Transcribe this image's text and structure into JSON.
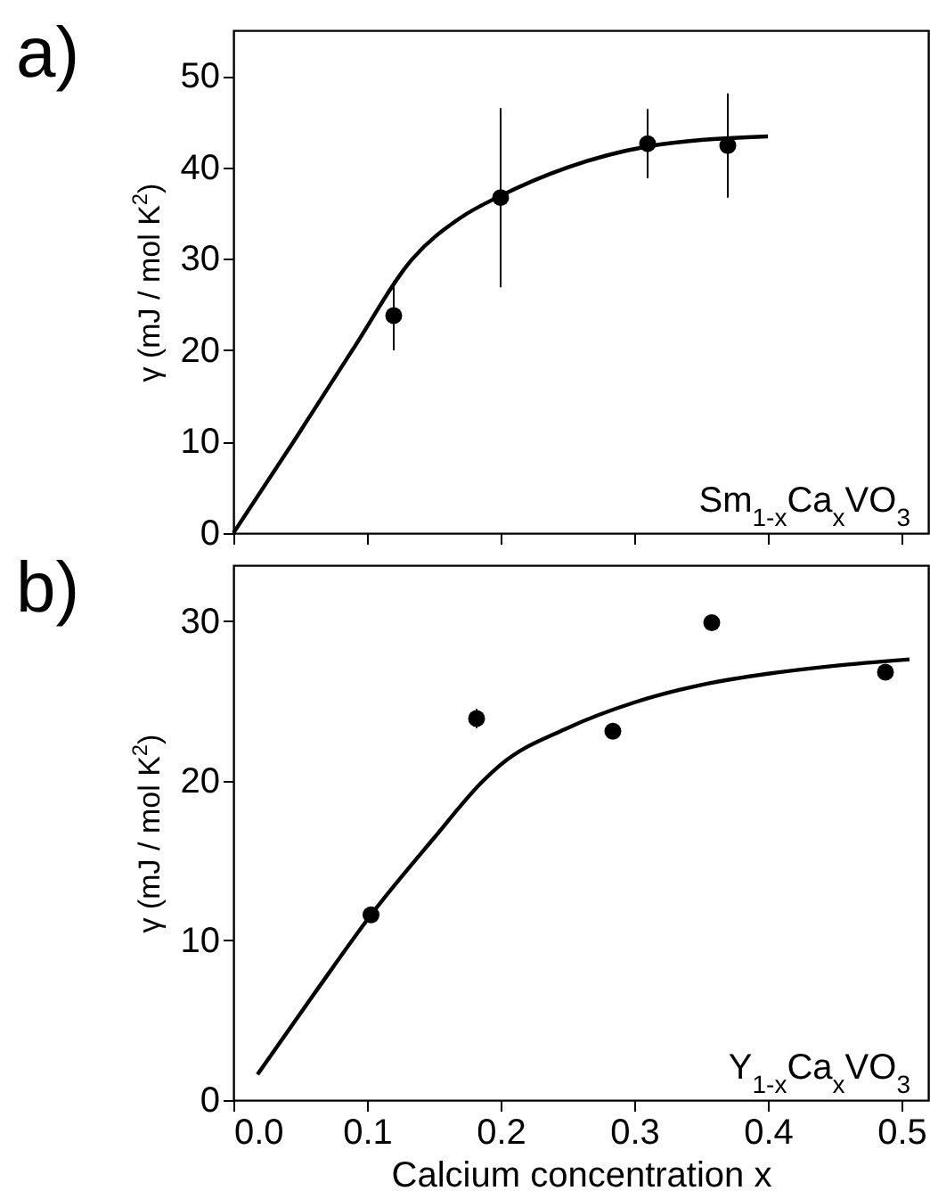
{
  "chart_data": [
    {
      "type": "scatter",
      "title": "a)",
      "ylabel": "γ (mJ / mol K$^{2}$)",
      "annotations": [
        "Sm$_{1-x}$Ca$_{x}$VO$_{3}$"
      ],
      "xlim": [
        0,
        0.52
      ],
      "xticks": [
        0,
        0.1,
        0.2,
        0.3,
        0.4,
        0.5
      ],
      "ylim": [
        0,
        55
      ],
      "yticks": [
        0,
        10,
        20,
        30,
        40,
        50
      ],
      "tick_labels": "y",
      "series": [
        {
          "marker": "circle",
          "color": "#000000",
          "x": [
            0.12,
            0.2,
            0.31,
            0.37
          ],
          "values": [
            23.8,
            36.7,
            42.6,
            42.4
          ],
          "errors": [
            3.8,
            9.8,
            3.8,
            5.7
          ]
        },
        {
          "type": "line",
          "color": "#000000",
          "x": [
            0,
            0.045,
            0.089,
            0.134,
            0.17,
            0.2,
            0.25,
            0.31,
            0.35,
            0.4
          ],
          "values": [
            0,
            10,
            20,
            30,
            34.5,
            36.9,
            40,
            42.3,
            43.0,
            43.4
          ]
        }
      ]
    },
    {
      "type": "scatter",
      "title": "b)",
      "xlabel": "Calcium concentration x",
      "ylabel": "γ (mJ / mol K$^{2}$)",
      "annotations": [
        "Y$_{1-x}$Ca$_{x}$VO$_{3}$"
      ],
      "xlim": [
        0,
        0.52
      ],
      "xticks": [
        {
          "value": 0,
          "label": "0.0"
        },
        0.1,
        0.2,
        0.3,
        0.4,
        0.5
      ],
      "ylim": [
        0,
        33.5
      ],
      "yticks": [
        0,
        10,
        20,
        30
      ],
      "series": [
        {
          "marker": "circle",
          "color": "#000000",
          "x": [
            0.103,
            0.182,
            0.284,
            0.358,
            0.488
          ],
          "values": [
            11.6,
            23.9,
            23.1,
            29.9,
            26.8
          ],
          "errors": [
            null,
            0.6,
            null,
            null,
            null
          ]
        },
        {
          "type": "line",
          "color": "#000000",
          "x": [
            0.018,
            0.06,
            0.103,
            0.15,
            0.187,
            0.2,
            0.25,
            0.3,
            0.35,
            0.4,
            0.45,
            0.506
          ],
          "values": [
            1.6,
            6.6,
            11.6,
            16.4,
            20,
            21,
            23.3,
            24.9,
            26,
            26.7,
            27.2,
            27.6
          ]
        }
      ]
    }
  ]
}
